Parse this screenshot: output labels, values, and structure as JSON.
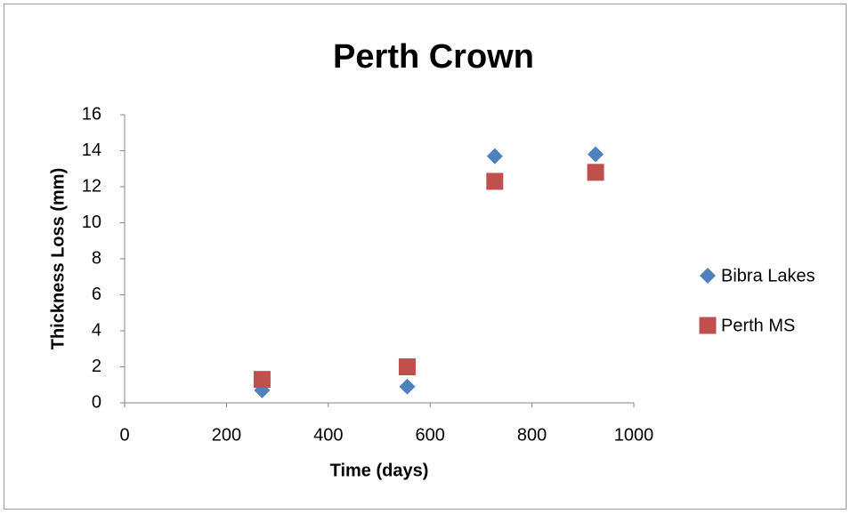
{
  "chart_data": {
    "type": "scatter",
    "title": "Perth Crown",
    "x_label": "Time (days)",
    "y_label": "Thickness Loss (mm)",
    "series": [
      {
        "name": "Bibra Lakes",
        "color": "#4f81bd",
        "marker": "diamond",
        "x": [
          270,
          555,
          727,
          925
        ],
        "values": [
          0.7,
          0.9,
          13.7,
          13.8
        ]
      },
      {
        "name": "Perth MS",
        "color": "#c0504d",
        "marker": "square",
        "x": [
          270,
          555,
          727,
          925
        ],
        "values": [
          1.3,
          2.0,
          12.3,
          12.8
        ]
      }
    ],
    "xlim": [
      0,
      1000
    ],
    "xticks": [
      0,
      200,
      400,
      600,
      800,
      1000
    ],
    "ylim": [
      0,
      16
    ],
    "yticks": [
      0,
      2,
      4,
      6,
      8,
      10,
      12,
      14,
      16
    ],
    "grid": false,
    "legend": "right"
  }
}
